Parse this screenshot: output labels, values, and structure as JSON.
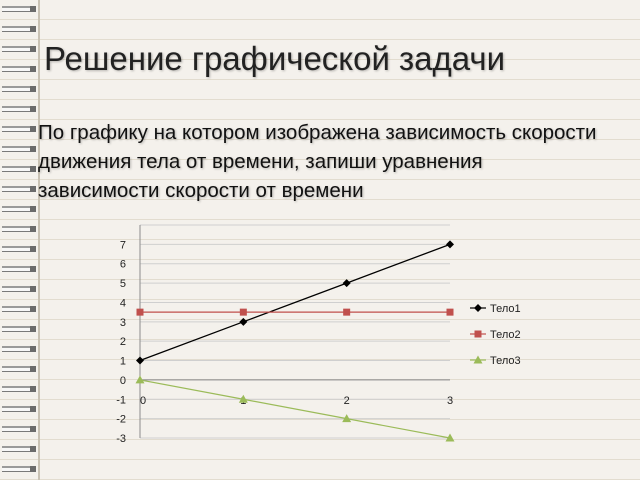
{
  "slide": {
    "title": "Решение графической задачи",
    "task": "По графику на котором изображена зависимость скорости движения тела от времени, запиши уравнения зависимости скорости от времени"
  },
  "chart_data": {
    "type": "line",
    "x": [
      0,
      1,
      2,
      3
    ],
    "x_tick_labels": [
      "0",
      "1",
      "2",
      "3"
    ],
    "y_tick_labels": [
      "-3",
      "-2",
      "-1",
      "0",
      "1",
      "2",
      "3",
      "4",
      "5",
      "6",
      "7"
    ],
    "ylim": [
      -3,
      8
    ],
    "grid": true,
    "legend_position": "right",
    "series": [
      {
        "name": "Тело1",
        "values": [
          1,
          3,
          5,
          7
        ],
        "color": "#000000",
        "marker": "diamond"
      },
      {
        "name": "Тело2",
        "values": [
          3.5,
          3.5,
          3.5,
          3.5
        ],
        "color": "#c0504d",
        "marker": "square"
      },
      {
        "name": "Тело3",
        "values": [
          0,
          -1,
          -2,
          -3
        ],
        "color": "#9bbb59",
        "marker": "triangle"
      }
    ]
  }
}
